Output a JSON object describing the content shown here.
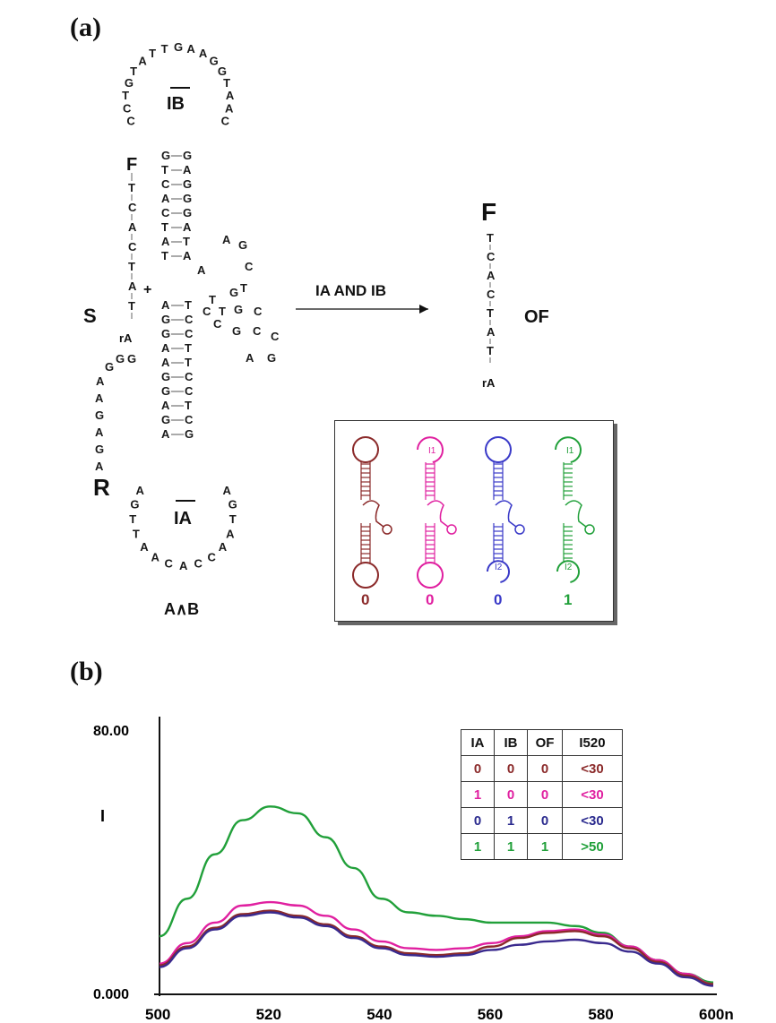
{
  "panel_a": {
    "label": "(a)",
    "top_loop_label": "IB",
    "bottom_loop_label": "IA",
    "construct_label": "A∧B",
    "substrate_label": "S",
    "fluor_label": "F",
    "r_label": "R",
    "ra_label": "rA",
    "plus": "+",
    "arrow_label": "IA AND IB",
    "product_label": "OF",
    "product_fluor": "F",
    "product_ra": "rA",
    "top_loop_bases": [
      "C",
      "C",
      "T",
      "G",
      "T",
      "A",
      "T",
      "T",
      "G",
      "A",
      "A",
      "G",
      "G",
      "T",
      "A",
      "A",
      "C"
    ],
    "bottom_loop_bases": [
      "A",
      "G",
      "T",
      "T",
      "A",
      "A",
      "C",
      "A",
      "C",
      "C",
      "A",
      "A",
      "T",
      "G",
      "A"
    ],
    "substrate_bases": [
      "T",
      "C",
      "A",
      "C",
      "T",
      "A",
      "T"
    ],
    "r_arm_bases": [
      "G",
      "G",
      "A",
      "A",
      "G",
      "A",
      "G",
      "A"
    ],
    "product_bases": [
      "T",
      "C",
      "A",
      "C",
      "T",
      "A",
      "T"
    ],
    "inset": {
      "outputs": [
        "0",
        "0",
        "0",
        "1"
      ],
      "colors": [
        "#8b2a2a",
        "#e020a0",
        "#3a3ac8",
        "#21a03a"
      ],
      "input_labels": [
        "I1",
        "I2"
      ]
    }
  },
  "panel_b": {
    "label": "(b)",
    "y_axis_max_label": "80.00",
    "y_axis_min_label": "0.000",
    "y_axis_label": "I",
    "x_ticks": [
      "500",
      "520",
      "540",
      "560",
      "580",
      "600n"
    ],
    "table": {
      "headers": [
        "IA",
        "IB",
        "OF",
        "I520"
      ],
      "rows": [
        {
          "ia": "0",
          "ib": "0",
          "of": "0",
          "i520": "<30",
          "color": "#8b2a2a"
        },
        {
          "ia": "1",
          "ib": "0",
          "of": "0",
          "i520": "<30",
          "color": "#e020a0"
        },
        {
          "ia": "0",
          "ib": "1",
          "of": "0",
          "i520": "<30",
          "color": "#2a2a8e"
        },
        {
          "ia": "1",
          "ib": "1",
          "of": "1",
          "i520": ">50",
          "color": "#21a03a"
        }
      ]
    }
  },
  "chart_data": {
    "type": "line",
    "xlim": [
      500,
      600
    ],
    "ylim": [
      0,
      80
    ],
    "ylabel": "I",
    "xlabel": "",
    "series": [
      {
        "color": "#21a03a",
        "x": [
          500,
          505,
          510,
          515,
          520,
          525,
          530,
          535,
          540,
          545,
          550,
          555,
          560,
          565,
          570,
          575,
          580,
          585,
          590,
          595,
          600
        ],
        "values": [
          17,
          28,
          41,
          51,
          55,
          53,
          46,
          37,
          28,
          24,
          23,
          22,
          21,
          21,
          21,
          20,
          18,
          14,
          10,
          6,
          3.5
        ]
      },
      {
        "color": "#e020a0",
        "x": [
          500,
          505,
          510,
          515,
          520,
          525,
          530,
          535,
          540,
          545,
          550,
          555,
          560,
          565,
          570,
          575,
          580,
          585,
          590,
          595,
          600
        ],
        "values": [
          9,
          15,
          21,
          26,
          27,
          26,
          23,
          19,
          15.5,
          13.5,
          13,
          13.5,
          15,
          17,
          18.5,
          19,
          17.5,
          14,
          10,
          6,
          3
        ]
      },
      {
        "color": "#8b2a2a",
        "x": [
          500,
          505,
          510,
          515,
          520,
          525,
          530,
          535,
          540,
          545,
          550,
          555,
          560,
          565,
          570,
          575,
          580,
          585,
          590,
          595,
          600
        ],
        "values": [
          8.5,
          14,
          19.5,
          23.5,
          24.5,
          23,
          20.5,
          17,
          14,
          12,
          11.5,
          12,
          14,
          16.5,
          18,
          18.5,
          17,
          13.5,
          9.5,
          5.5,
          3
        ]
      },
      {
        "color": "#3a2a8e",
        "x": [
          500,
          505,
          510,
          515,
          520,
          525,
          530,
          535,
          540,
          545,
          550,
          555,
          560,
          565,
          570,
          575,
          580,
          585,
          590,
          595,
          600
        ],
        "values": [
          8,
          13.5,
          19,
          23,
          24,
          22.5,
          20,
          16.5,
          13.5,
          11.5,
          11,
          11.5,
          13,
          14.5,
          15.5,
          16,
          15,
          12.5,
          9,
          5,
          2.5
        ]
      }
    ]
  }
}
